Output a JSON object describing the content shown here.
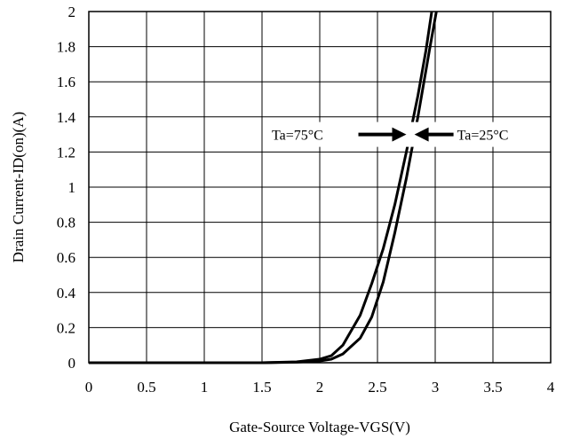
{
  "chart_data": {
    "type": "line",
    "title": "",
    "xlabel": "Gate-Source Voltage-VGS(V)",
    "ylabel": "Drain Current-ID(on)(A)",
    "xlim": [
      0,
      4
    ],
    "ylim": [
      0,
      2
    ],
    "xticks": [
      0,
      0.5,
      1,
      1.5,
      2,
      2.5,
      3,
      3.5,
      4
    ],
    "yticks": [
      0,
      0.2,
      0.4,
      0.6,
      0.8,
      1,
      1.2,
      1.4,
      1.6,
      1.8,
      2
    ],
    "xtick_labels": [
      "0",
      "0.5",
      "1",
      "1.5",
      "2",
      "2.5",
      "3",
      "3.5",
      "4"
    ],
    "ytick_labels": [
      "0",
      "0.2",
      "0.4",
      "0.6",
      "0.8",
      "1",
      "1.2",
      "1.4",
      "1.6",
      "1.8",
      "2"
    ],
    "grid": true,
    "legend": "none",
    "series": [
      {
        "label": "Ta=75°C",
        "color": "#000000",
        "x": [
          0,
          1.5,
          1.8,
          2.0,
          2.1,
          2.2,
          2.35,
          2.45,
          2.55,
          2.65,
          2.75,
          2.85,
          2.92,
          2.97
        ],
        "y": [
          0,
          0,
          0.005,
          0.02,
          0.04,
          0.1,
          0.27,
          0.45,
          0.65,
          0.9,
          1.2,
          1.52,
          1.78,
          2.0
        ]
      },
      {
        "label": "Ta=25°C",
        "color": "#000000",
        "x": [
          0,
          1.5,
          1.8,
          2.0,
          2.1,
          2.2,
          2.35,
          2.45,
          2.55,
          2.65,
          2.75,
          2.85,
          2.95,
          3.01
        ],
        "y": [
          0,
          0,
          0.003,
          0.01,
          0.02,
          0.05,
          0.14,
          0.26,
          0.46,
          0.74,
          1.05,
          1.4,
          1.78,
          2.0
        ]
      }
    ],
    "annotations": [
      {
        "text": "Ta=75°C",
        "arrow": "right",
        "x": 2.75,
        "y": 1.3
      },
      {
        "text": "Ta=25°C",
        "arrow": "left",
        "x": 2.82,
        "y": 1.3
      }
    ]
  }
}
